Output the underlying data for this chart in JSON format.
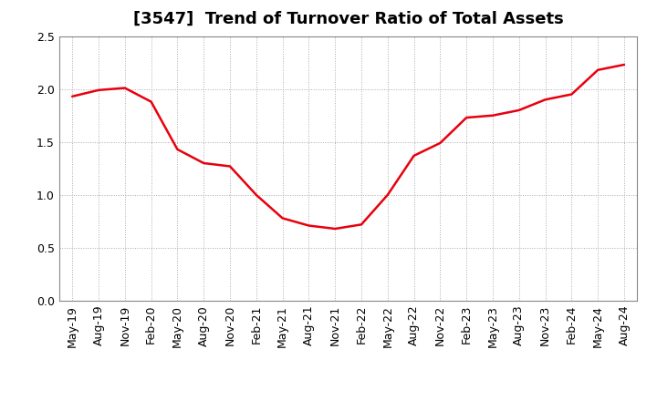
{
  "title": "[3547]  Trend of Turnover Ratio of Total Assets",
  "line_color": "#e8000d",
  "background_color": "#ffffff",
  "plot_bg_color": "#ffffff",
  "grid_color": "#aaaaaa",
  "ylim": [
    0.0,
    2.5
  ],
  "yticks": [
    0.0,
    0.5,
    1.0,
    1.5,
    2.0,
    2.5
  ],
  "x_labels": [
    "May-19",
    "Aug-19",
    "Nov-19",
    "Feb-20",
    "May-20",
    "Aug-20",
    "Nov-20",
    "Feb-21",
    "May-21",
    "Aug-21",
    "Nov-21",
    "Feb-22",
    "May-22",
    "Aug-22",
    "Nov-22",
    "Feb-23",
    "May-23",
    "Aug-23",
    "Nov-23",
    "Feb-24",
    "May-24",
    "Aug-24"
  ],
  "y_values": [
    1.93,
    1.99,
    2.01,
    1.88,
    1.43,
    1.3,
    1.27,
    1.0,
    0.78,
    0.71,
    0.68,
    0.72,
    1.0,
    1.37,
    1.49,
    1.73,
    1.75,
    1.8,
    1.9,
    1.95,
    2.18,
    2.23
  ],
  "title_fontsize": 13,
  "tick_fontsize": 9,
  "line_width": 1.8
}
